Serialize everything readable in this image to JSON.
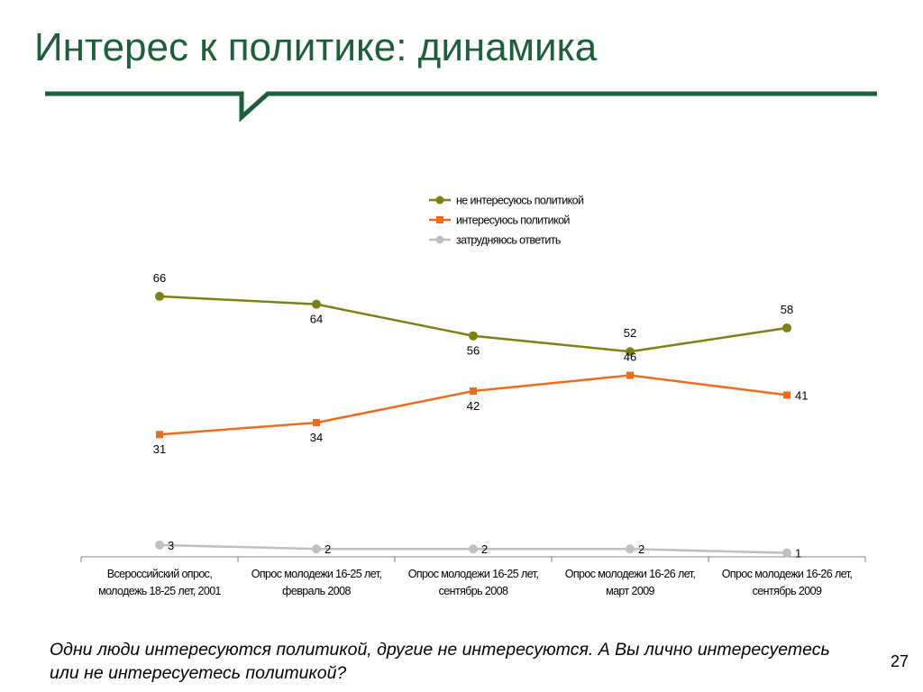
{
  "slide": {
    "title": "Интерес к политике: динамика",
    "question": "Одни люди интересуются политикой, другие не интересуются. А Вы лично интересуетесь или не интересуетесь политикой?",
    "page_number": "27"
  },
  "colors": {
    "title": "#1e5e3a",
    "rule": "#1e5e3a"
  },
  "chart_data": {
    "type": "line",
    "categories": [
      [
        "Всероссийский опрос,",
        "молодежь 18-25 лет, 2001"
      ],
      [
        "Опрос молодежи 16-25 лет,",
        "февраль 2008"
      ],
      [
        "Опрос молодежи 16-25 лет,",
        "сентябрь 2008"
      ],
      [
        "Опрос молодежи 16-26 лет,",
        "март 2009"
      ],
      [
        "Опрос молодежи 16-26 лет,",
        "сентябрь 2009"
      ]
    ],
    "series": [
      {
        "name": "не интересуюсь политикой",
        "values": [
          66,
          64,
          56,
          52,
          58
        ],
        "color": "#7f7f17",
        "marker": "circle",
        "label_pos": [
          "above",
          "below",
          "below",
          "above",
          "above"
        ]
      },
      {
        "name": "интересуюсь политикой",
        "values": [
          31,
          34,
          42,
          46,
          41
        ],
        "color": "#f26b1d",
        "marker": "square",
        "label_pos": [
          "below",
          "below",
          "below",
          "above",
          "right"
        ]
      },
      {
        "name": "затрудняюсь ответить",
        "values": [
          3,
          2,
          2,
          2,
          1
        ],
        "color": "#bfbfbf",
        "marker": "circle",
        "label_pos": [
          "right",
          "right",
          "right",
          "right",
          "right"
        ]
      }
    ],
    "ylim": [
      0,
      100
    ],
    "y_axis_visible": false,
    "grid": false,
    "legend": "top"
  }
}
